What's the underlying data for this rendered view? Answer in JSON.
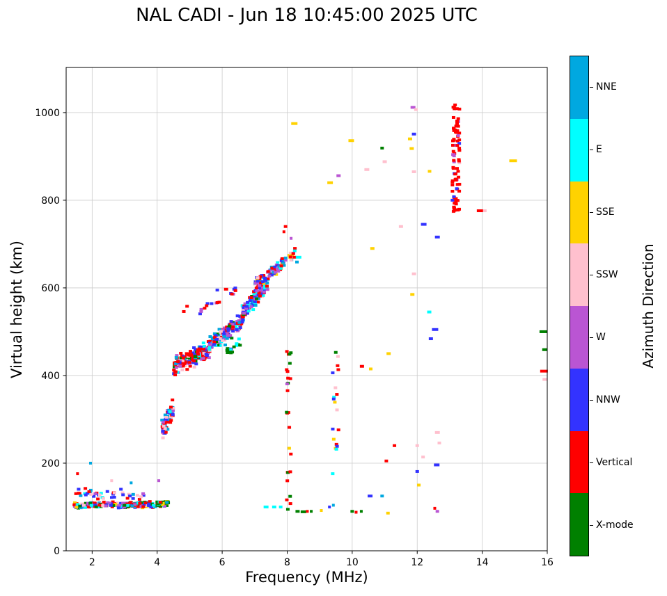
{
  "title": "NAL CADI - Jun 18 10:45:00 2025 UTC",
  "axes": {
    "xlabel": "Frequency (MHz)",
    "ylabel": "Virtual height (km)",
    "x_ticks": [
      2,
      4,
      6,
      8,
      10,
      12,
      14,
      16
    ],
    "y_ticks": [
      0,
      200,
      400,
      600,
      800,
      1000
    ],
    "xlim": [
      1.2,
      16
    ],
    "ylim": [
      0,
      1103
    ],
    "grid": true
  },
  "colorbar": {
    "label": "Azimuth Direction",
    "categories": [
      {
        "name": "NNE",
        "color": "#00A8E0"
      },
      {
        "name": "E",
        "color": "#00FFFF"
      },
      {
        "name": "SSE",
        "color": "#FFD200"
      },
      {
        "name": "SSW",
        "color": "#FFC0CE"
      },
      {
        "name": "W",
        "color": "#BA55D3"
      },
      {
        "name": "NNW",
        "color": "#3333FF"
      },
      {
        "name": "Vertical",
        "color": "#FF0000"
      },
      {
        "name": "X-mode",
        "color": "#008000"
      }
    ]
  },
  "chart_data": {
    "type": "scatter",
    "title": "NAL CADI - Jun 18 10:45:00 2025 UTC",
    "xlabel": "Frequency (MHz)",
    "ylabel": "Virtual height (km)",
    "xlim": [
      1.2,
      16
    ],
    "ylim": [
      0,
      1103
    ],
    "legend_title": "Azimuth Direction",
    "legend_position": "right-colorbar",
    "marker": {
      "w": 5,
      "h": 4
    },
    "description": "Ionogram: virtual height vs frequency echoes, colored by azimuth direction category. Dense E-layer band near 100 km (1.5-4.3 MHz); F-layer trace rising from ~270 km at 4.2 MHz to ~680 km at 8.2 MHz; vertical red echo column at 13.2 MHz between 770 and 1020 km; scattered spread-F echoes elsewhere.",
    "bands": [
      {
        "x0": 1.45,
        "x1": 4.3,
        "y0": 104,
        "y1": 106,
        "spread": 9,
        "count": 260,
        "colors": {
          "Vertical": 0.2,
          "SSW": 0.13,
          "E": 0.08,
          "NNE": 0.07,
          "NNW": 0.12,
          "W": 0.15,
          "X-mode": 0.19,
          "SSE": 0.06
        }
      },
      {
        "x0": 1.5,
        "x1": 3.6,
        "y0": 133,
        "y1": 126,
        "spread": 14,
        "count": 42,
        "colors": {
          "NNW": 0.25,
          "NNE": 0.2,
          "SSW": 0.15,
          "W": 0.15,
          "Vertical": 0.15,
          "E": 0.1
        }
      },
      {
        "x0": 4.0,
        "x1": 4.35,
        "y0": 108,
        "y1": 112,
        "spread": 7,
        "count": 28,
        "colors": {
          "X-mode": 0.5,
          "E": 0.2,
          "NNE": 0.1,
          "Vertical": 0.1,
          "SSE": 0.1
        }
      },
      {
        "x0": 4.15,
        "x1": 4.5,
        "y0": 278,
        "y1": 325,
        "spread": 32,
        "count": 100,
        "colors": {
          "Vertical": 0.28,
          "SSW": 0.2,
          "NNW": 0.18,
          "W": 0.15,
          "NNE": 0.1,
          "E": 0.09
        }
      },
      {
        "x0": 4.5,
        "x1": 5.6,
        "y0": 420,
        "y1": 462,
        "spread": 28,
        "count": 215,
        "colors": {
          "Vertical": 0.42,
          "NNW": 0.16,
          "W": 0.14,
          "SSW": 0.1,
          "E": 0.07,
          "NNE": 0.06,
          "X-mode": 0.05
        }
      },
      {
        "x0": 5.6,
        "x1": 6.6,
        "y0": 468,
        "y1": 522,
        "spread": 30,
        "count": 160,
        "colors": {
          "NNW": 0.26,
          "Vertical": 0.18,
          "W": 0.16,
          "E": 0.12,
          "NNE": 0.12,
          "SSW": 0.09,
          "X-mode": 0.07
        }
      },
      {
        "x0": 6.15,
        "x1": 6.55,
        "y0": 452,
        "y1": 478,
        "spread": 14,
        "count": 18,
        "colors": {
          "X-mode": 0.8,
          "NNW": 0.1,
          "E": 0.1
        }
      },
      {
        "x0": 6.6,
        "x1": 7.4,
        "y0": 538,
        "y1": 612,
        "spread": 28,
        "count": 130,
        "colors": {
          "NNW": 0.3,
          "NNE": 0.14,
          "E": 0.13,
          "W": 0.15,
          "Vertical": 0.14,
          "SSW": 0.08,
          "X-mode": 0.06
        }
      },
      {
        "x0": 7.0,
        "x1": 7.9,
        "y0": 602,
        "y1": 662,
        "spread": 22,
        "count": 80,
        "colors": {
          "NNE": 0.18,
          "E": 0.16,
          "NNW": 0.2,
          "W": 0.16,
          "Vertical": 0.16,
          "SSW": 0.08,
          "SSE": 0.06
        }
      },
      {
        "x0": 7.7,
        "x1": 8.25,
        "y0": 640,
        "y1": 682,
        "spread": 16,
        "count": 24,
        "colors": {
          "Vertical": 0.25,
          "W": 0.2,
          "SSE": 0.15,
          "E": 0.15,
          "NNE": 0.15,
          "SSW": 0.1
        }
      },
      {
        "x0": 5.3,
        "x1": 6.45,
        "y0": 548,
        "y1": 598,
        "spread": 12,
        "count": 15,
        "colors": {
          "Vertical": 0.5,
          "NNW": 0.3,
          "W": 0.2
        }
      }
    ],
    "rect_clusters": [
      {
        "x0": 13.08,
        "x1": 13.3,
        "y0": 770,
        "y1": 1020,
        "count": 85,
        "colors": {
          "Vertical": 0.78,
          "W": 0.1,
          "SSW": 0.07,
          "NNW": 0.05
        }
      },
      {
        "x0": 7.98,
        "x1": 8.12,
        "y0": 85,
        "y1": 455,
        "count": 26,
        "colors": {
          "Vertical": 0.5,
          "X-mode": 0.32,
          "SSE": 0.09,
          "W": 0.09
        }
      },
      {
        "x0": 9.38,
        "x1": 9.58,
        "y0": 215,
        "y1": 495,
        "count": 18,
        "colors": {
          "SSE": 0.3,
          "NNW": 0.22,
          "E": 0.14,
          "SSW": 0.12,
          "X-mode": 0.11,
          "Vertical": 0.11
        }
      }
    ],
    "points": [
      [
        8.22,
        975,
        "SSE",
        9
      ],
      [
        9.32,
        840,
        "SSE",
        8
      ],
      [
        9.58,
        856,
        "W",
        6
      ],
      [
        9.97,
        936,
        "SSE",
        8
      ],
      [
        10.45,
        870,
        "SSW",
        7
      ],
      [
        10.92,
        919,
        "X-mode",
        5
      ],
      [
        11.0,
        888,
        "SSW",
        6
      ],
      [
        11.5,
        740,
        "SSW",
        6
      ],
      [
        11.78,
        940,
        "SSE",
        6
      ],
      [
        11.9,
        951,
        "NNW",
        6
      ],
      [
        11.87,
        1012,
        "W",
        7
      ],
      [
        11.96,
        1007,
        "SSW",
        5
      ],
      [
        11.83,
        918,
        "SSE",
        6
      ],
      [
        11.9,
        865,
        "SSW",
        6
      ],
      [
        12.38,
        866,
        "SSE",
        5
      ],
      [
        12.2,
        745,
        "NNW",
        8
      ],
      [
        12.62,
        716,
        "NNW",
        7
      ],
      [
        13.93,
        776,
        "Vertical",
        9
      ],
      [
        14.08,
        776,
        "SSW",
        5
      ],
      [
        14.95,
        890,
        "SSE",
        11
      ],
      [
        15.88,
        500,
        "X-mode",
        11
      ],
      [
        15.92,
        459,
        "X-mode",
        7
      ],
      [
        15.9,
        410,
        "Vertical",
        11
      ],
      [
        15.93,
        391,
        "SSW",
        7
      ],
      [
        11.9,
        632,
        "SSW",
        6
      ],
      [
        11.85,
        585,
        "SSE",
        6
      ],
      [
        12.37,
        545,
        "E",
        6
      ],
      [
        12.55,
        505,
        "NNW",
        9
      ],
      [
        12.42,
        484,
        "NNW",
        6
      ],
      [
        11.12,
        450,
        "SSE",
        6
      ],
      [
        10.3,
        421,
        "Vertical",
        6
      ],
      [
        10.57,
        415,
        "SSE",
        5
      ],
      [
        10.62,
        690,
        "SSE",
        6
      ],
      [
        11.3,
        240,
        "Vertical",
        5
      ],
      [
        11.05,
        205,
        "Vertical",
        5
      ],
      [
        12.0,
        240,
        "SSW",
        5
      ],
      [
        12.18,
        214,
        "SSW",
        5
      ],
      [
        12.62,
        270,
        "SSW",
        7
      ],
      [
        12.68,
        246,
        "SSW",
        5
      ],
      [
        12.0,
        181,
        "NNW",
        5
      ],
      [
        12.05,
        150,
        "SSE",
        5
      ],
      [
        12.6,
        196,
        "NNW",
        8
      ],
      [
        12.62,
        90,
        "W",
        5
      ],
      [
        12.54,
        97,
        "Vertical",
        4
      ],
      [
        9.4,
        176,
        "E",
        5
      ],
      [
        7.35,
        100,
        "E",
        7
      ],
      [
        7.6,
        100,
        "E",
        6
      ],
      [
        7.8,
        100,
        "E",
        5
      ],
      [
        8.32,
        90,
        "X-mode",
        6
      ],
      [
        8.5,
        89,
        "X-mode",
        8
      ],
      [
        8.62,
        90,
        "Vertical",
        4
      ],
      [
        8.74,
        90,
        "X-mode",
        4
      ],
      [
        9.05,
        92,
        "SSE",
        4
      ],
      [
        9.3,
        100,
        "NNW",
        4
      ],
      [
        9.42,
        104,
        "NNE",
        4
      ],
      [
        10.0,
        90,
        "X-mode",
        5
      ],
      [
        10.12,
        88,
        "Vertical",
        4
      ],
      [
        10.28,
        90,
        "X-mode",
        4
      ],
      [
        10.55,
        125,
        "NNW",
        7
      ],
      [
        10.92,
        125,
        "NNE",
        5
      ],
      [
        11.1,
        86,
        "SSE",
        5
      ],
      [
        4.82,
        546,
        "Vertical",
        5
      ],
      [
        4.92,
        558,
        "Vertical",
        5
      ],
      [
        5.85,
        595,
        "NNW",
        5
      ],
      [
        6.12,
        597,
        "Vertical",
        6
      ],
      [
        6.3,
        586,
        "Vertical",
        5
      ],
      [
        8.35,
        670,
        "E",
        8
      ],
      [
        8.3,
        659,
        "NNE",
        5
      ],
      [
        8.12,
        713,
        "W",
        4
      ],
      [
        7.95,
        740,
        "Vertical",
        5
      ],
      [
        7.9,
        728,
        "Vertical",
        4
      ],
      [
        1.55,
        176,
        "Vertical",
        4
      ],
      [
        1.95,
        200,
        "NNE",
        4
      ],
      [
        2.6,
        160,
        "SSW",
        4
      ],
      [
        3.2,
        155,
        "NNE",
        4
      ],
      [
        4.05,
        160,
        "W",
        4
      ]
    ]
  }
}
